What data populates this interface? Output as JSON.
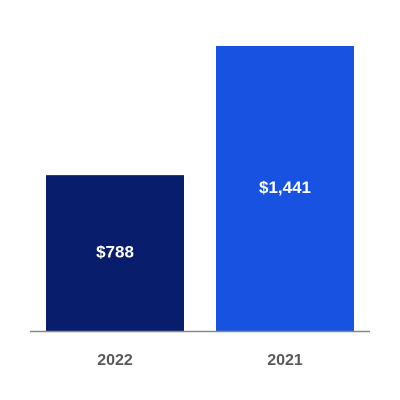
{
  "chart_data": {
    "type": "bar",
    "categories": [
      "2022",
      "2021"
    ],
    "values": [
      788,
      1441
    ],
    "value_labels": [
      "$788",
      "$1,441"
    ],
    "colors": [
      "#081d6c",
      "#1753e0"
    ]
  }
}
